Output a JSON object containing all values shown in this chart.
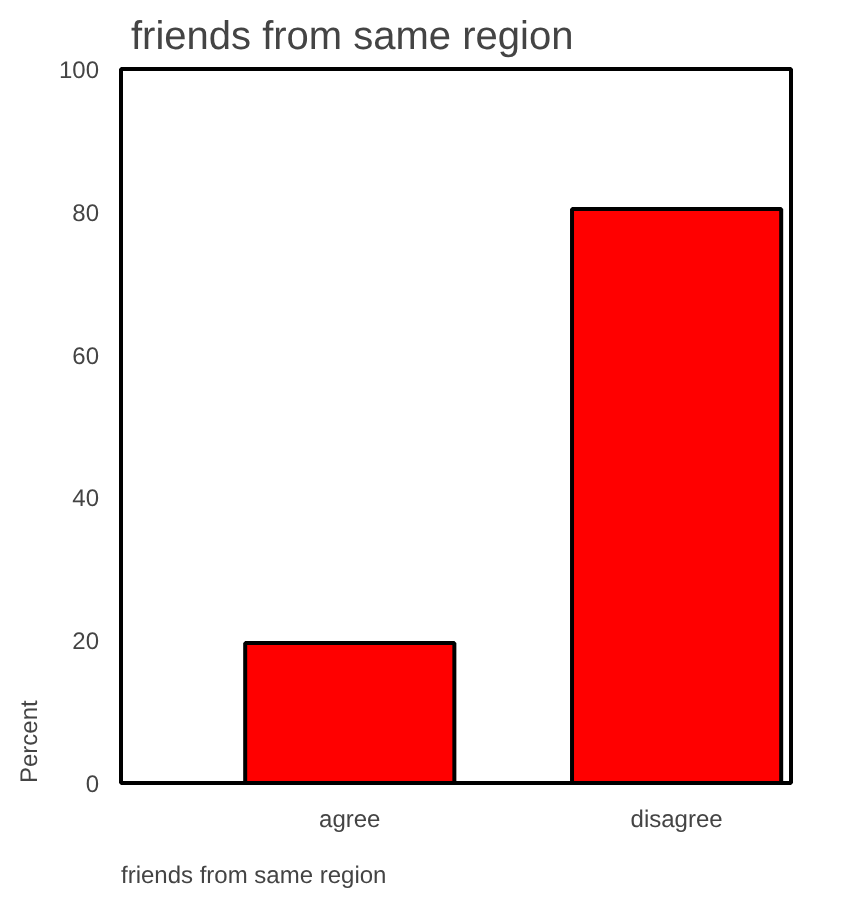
{
  "chart_data": {
    "type": "bar",
    "title": "friends from same region",
    "xlabel": "friends from same region",
    "ylabel": "Percent",
    "categories": [
      "agree",
      "disagree"
    ],
    "values": [
      19.6,
      80.4
    ],
    "color": "#ff0000",
    "ylim": [
      0,
      100
    ],
    "yticks": [
      0,
      20,
      40,
      60,
      80,
      100
    ],
    "grid": false
  }
}
